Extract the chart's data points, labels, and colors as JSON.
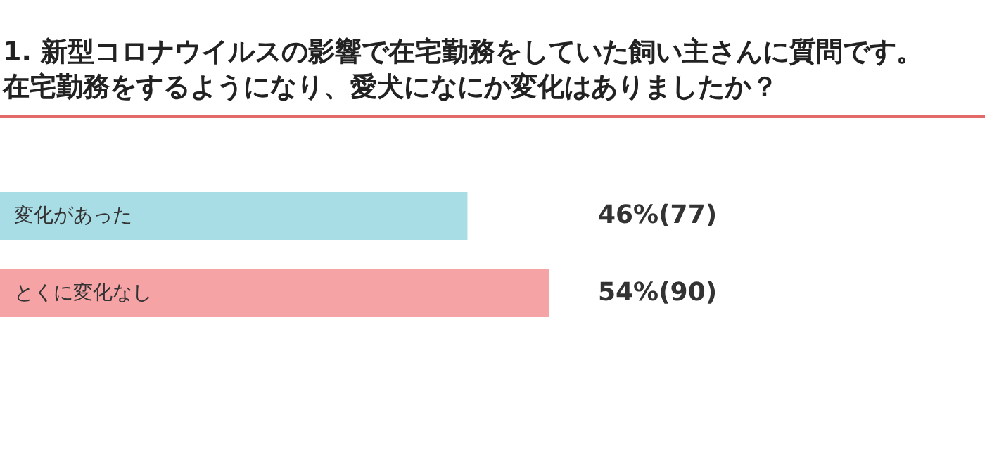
{
  "chart_data": {
    "type": "bar",
    "orientation": "horizontal",
    "title": "1. 新型コロナウイルスの影響で在宅勤務をしていた飼い主さんに質問です。",
    "subtitle": "在宅勤務をするようになり、愛犬になにか変化はありましたか？",
    "categories": [
      "変化があった",
      "とくに変化なし"
    ],
    "values": [
      46,
      54
    ],
    "colors": [
      "#a9dde6",
      "#f5a3a5"
    ],
    "value_labels": [
      "46%(77)",
      "54%(90)"
    ]
  }
}
